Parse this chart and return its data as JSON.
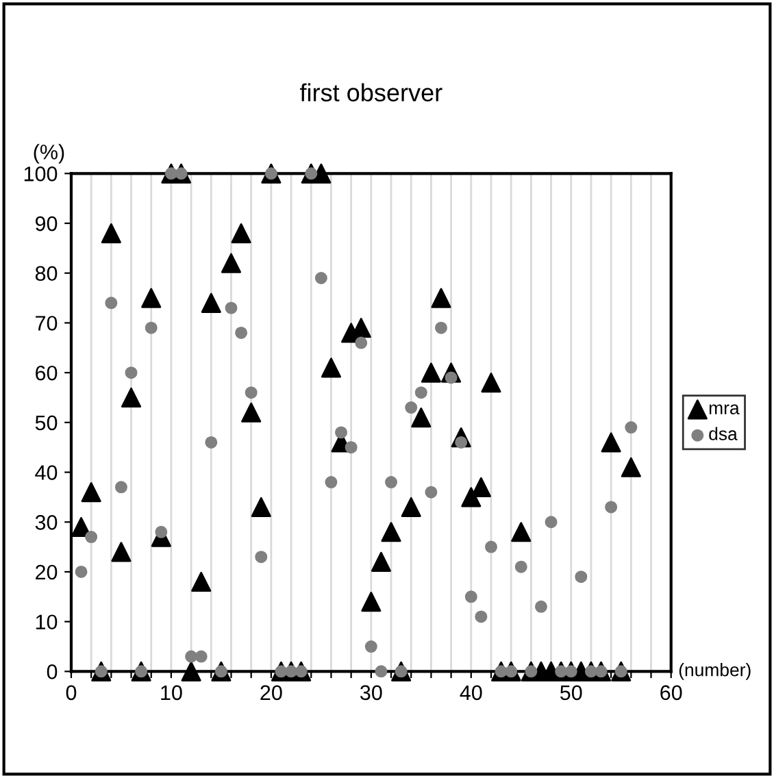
{
  "chart_data": {
    "type": "scatter",
    "title": "first observer",
    "ylabel": "(%)",
    "xlabel": "(number)",
    "xlim": [
      0,
      60
    ],
    "ylim": [
      0,
      100
    ],
    "xticks": [
      0,
      {
        "value": 2,
        "label": null
      },
      {
        "value": 4,
        "label": null
      },
      {
        "value": 6,
        "label": null
      },
      {
        "value": 8,
        "label": null
      },
      10,
      {
        "value": 12,
        "label": null
      },
      {
        "value": 14,
        "label": null
      },
      {
        "value": 16,
        "label": null
      },
      {
        "value": 18,
        "label": null
      },
      20,
      {
        "value": 22,
        "label": null
      },
      {
        "value": 24,
        "label": null
      },
      {
        "value": 26,
        "label": null
      },
      {
        "value": 28,
        "label": null
      },
      30,
      {
        "value": 32,
        "label": null
      },
      {
        "value": 34,
        "label": null
      },
      {
        "value": 36,
        "label": null
      },
      {
        "value": 38,
        "label": null
      },
      40,
      {
        "value": 42,
        "label": null
      },
      {
        "value": 44,
        "label": null
      },
      {
        "value": 46,
        "label": null
      },
      {
        "value": 48,
        "label": null
      },
      50,
      {
        "value": 52,
        "label": null
      },
      {
        "value": 54,
        "label": null
      },
      {
        "value": 56,
        "label": null
      },
      {
        "value": 58,
        "label": null
      },
      60
    ],
    "yticks": [
      0,
      10,
      20,
      30,
      40,
      50,
      60,
      70,
      80,
      90,
      100
    ],
    "grid": "x",
    "legend": "right",
    "series": [
      {
        "name": "mra",
        "color": "#000000",
        "marker": "triangle",
        "x": [
          1,
          2,
          3,
          4,
          5,
          6,
          7,
          8,
          9,
          10,
          11,
          12,
          13,
          14,
          15,
          16,
          17,
          18,
          19,
          20,
          21,
          22,
          23,
          24,
          25,
          26,
          27,
          28,
          29,
          30,
          31,
          32,
          33,
          34,
          35,
          36,
          37,
          38,
          39,
          40,
          41,
          42,
          43,
          44,
          45,
          46,
          47,
          48,
          49,
          50,
          51,
          52,
          53,
          54,
          55,
          56
        ],
        "values": [
          29,
          36,
          0,
          88,
          24,
          55,
          0,
          75,
          27,
          100,
          100,
          0,
          18,
          74,
          0,
          82,
          88,
          52,
          33,
          100,
          0,
          0,
          0,
          100,
          100,
          61,
          46,
          68,
          69,
          14,
          22,
          28,
          0,
          33,
          51,
          60,
          75,
          60,
          47,
          35,
          37,
          58,
          0,
          0,
          28,
          0,
          0,
          0,
          0,
          0,
          0,
          0,
          0,
          46,
          0,
          41
        ]
      },
      {
        "name": "dsa",
        "color": "#808080",
        "marker": "circle",
        "x": [
          1,
          2,
          3,
          4,
          5,
          6,
          7,
          8,
          9,
          10,
          11,
          12,
          13,
          14,
          15,
          16,
          17,
          18,
          19,
          20,
          21,
          22,
          23,
          24,
          25,
          26,
          27,
          28,
          29,
          30,
          31,
          32,
          33,
          34,
          35,
          36,
          37,
          38,
          39,
          40,
          41,
          42,
          43,
          44,
          45,
          46,
          47,
          48,
          49,
          50,
          51,
          52,
          53,
          54,
          55,
          56
        ],
        "values": [
          20,
          27,
          0,
          74,
          37,
          60,
          0,
          69,
          28,
          100,
          100,
          3,
          3,
          46,
          0,
          73,
          68,
          56,
          23,
          100,
          0,
          0,
          0,
          100,
          79,
          38,
          48,
          45,
          66,
          5,
          0,
          38,
          0,
          53,
          56,
          36,
          69,
          59,
          46,
          15,
          11,
          25,
          0,
          0,
          21,
          0,
          13,
          30,
          0,
          0,
          19,
          0,
          0,
          33,
          0,
          49
        ]
      }
    ]
  }
}
